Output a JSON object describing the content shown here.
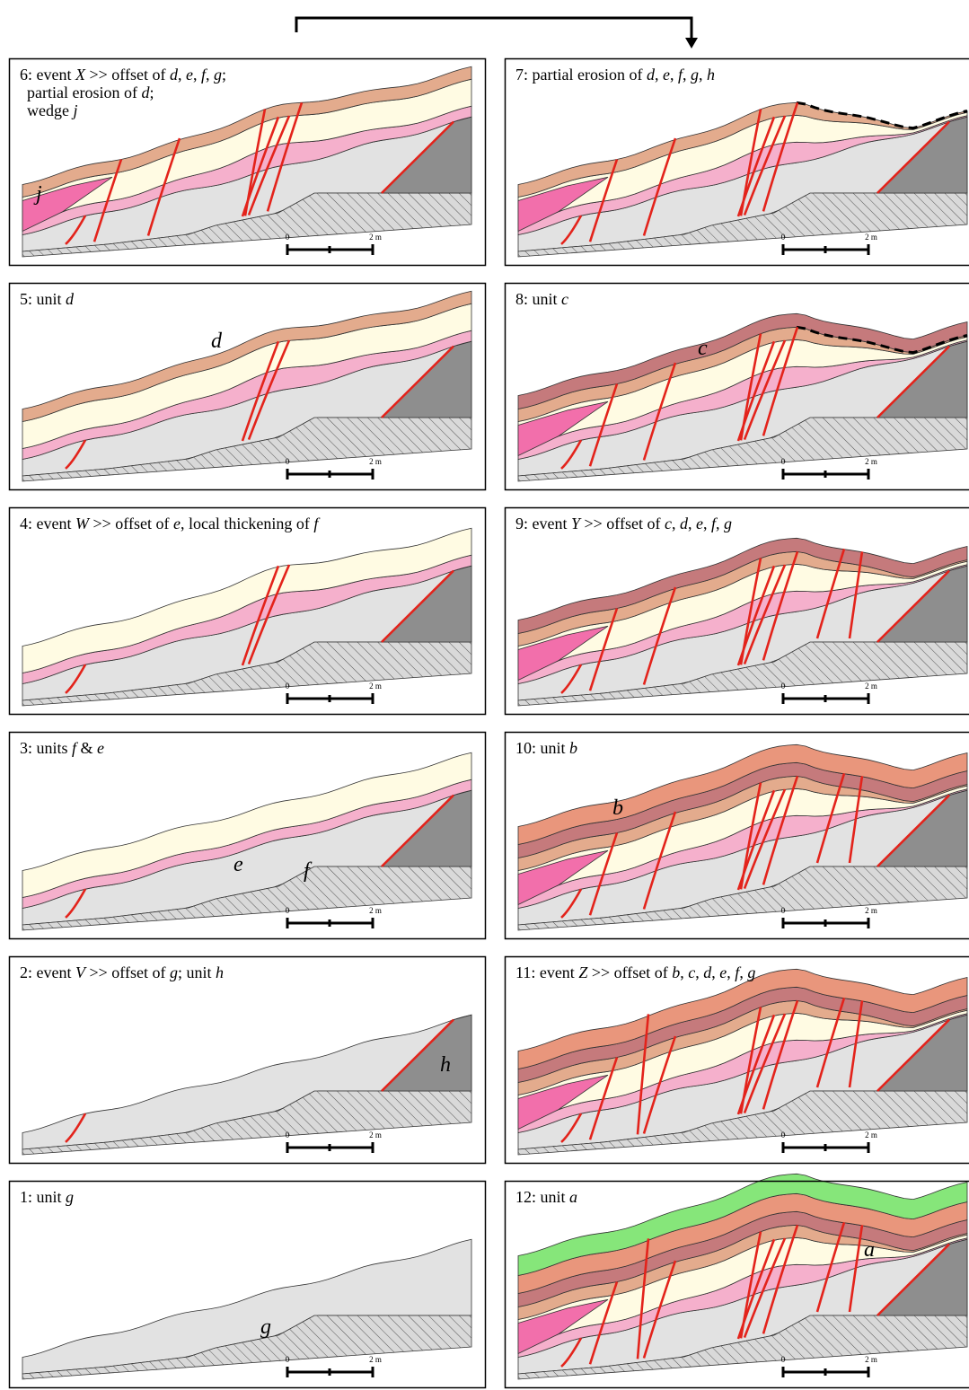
{
  "panels": [
    {
      "caption": [
        [
          "1: unit ",
          "g"
        ]
      ],
      "label": "g"
    },
    {
      "caption": [
        [
          "2: event ",
          "V",
          " >> offset of ",
          "g",
          "; unit ",
          "h"
        ]
      ],
      "label": "h"
    },
    {
      "caption": [
        [
          "3: units ",
          "f",
          " & ",
          "e"
        ]
      ],
      "labels": [
        "e",
        "f"
      ]
    },
    {
      "caption": [
        [
          "4: event ",
          "W",
          " >> offset of ",
          "e",
          ", local thickening of ",
          "f"
        ]
      ]
    },
    {
      "caption": [
        [
          "5: unit ",
          "d"
        ]
      ],
      "label": "d"
    },
    {
      "caption": [
        [
          "6: event ",
          "X",
          " >> offset of ",
          "d",
          ", ",
          "e",
          ", ",
          "f",
          ", ",
          "g",
          ";"
        ],
        [
          "partial erosion of ",
          "d",
          ";"
        ],
        [
          "wedge ",
          "j"
        ]
      ],
      "label": "j"
    },
    {
      "caption": [
        [
          "7: partial erosion of ",
          "d",
          ", ",
          "e",
          ", ",
          "f",
          ", ",
          "g",
          ", ",
          "h"
        ]
      ]
    },
    {
      "caption": [
        [
          "8: unit ",
          "c"
        ]
      ],
      "label": "c"
    },
    {
      "caption": [
        [
          "9: event ",
          "Y",
          " >> offset of ",
          "c",
          ", ",
          "d",
          ", ",
          "e",
          ", ",
          "f",
          ", ",
          "g"
        ]
      ]
    },
    {
      "caption": [
        [
          "10: unit ",
          "b"
        ]
      ],
      "label": "b"
    },
    {
      "caption": [
        [
          "11: event ",
          "Z",
          " >> offset of ",
          "b",
          ", ",
          "c",
          ", ",
          "d",
          ", ",
          "e",
          ", ",
          "f",
          ", ",
          "g"
        ]
      ]
    },
    {
      "caption": [
        [
          "12: unit ",
          "a"
        ]
      ],
      "label": "a"
    }
  ],
  "scale_bar": {
    "start": "0",
    "end": "2 m"
  }
}
